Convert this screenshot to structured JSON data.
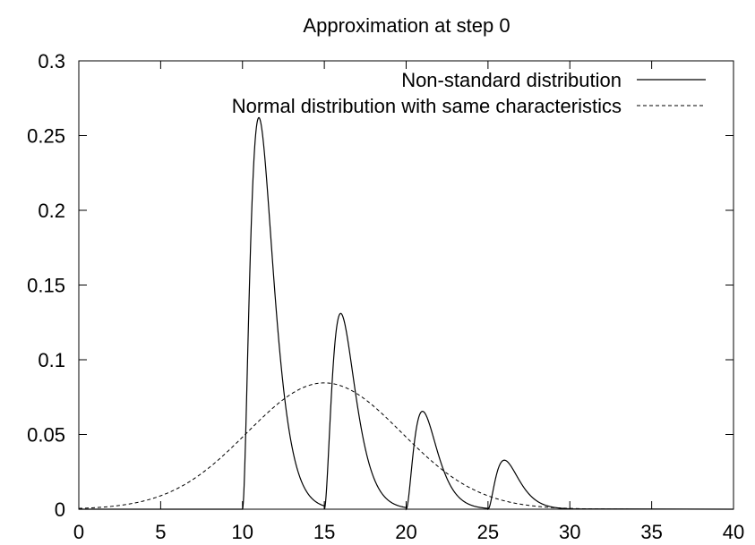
{
  "chart_data": {
    "type": "line",
    "title": "Approximation at step 0",
    "xlabel": "",
    "ylabel": "",
    "xlim": [
      0,
      40
    ],
    "ylim": [
      0,
      0.3
    ],
    "x_ticks": [
      "0",
      "5",
      "10",
      "15",
      "20",
      "25",
      "30",
      "35",
      "40"
    ],
    "y_ticks": [
      "0",
      "0.05",
      "0.1",
      "0.15",
      "0.2",
      "0.25",
      "0.3"
    ],
    "grid": false,
    "legend_position": "top-right",
    "series": [
      {
        "name": "Non-standard distribution",
        "style": "solid",
        "color": "#000000",
        "peaks": [
          {
            "start": 10,
            "end": 15,
            "peak_x": 11,
            "peak_y": 0.262
          },
          {
            "start": 15,
            "end": 20,
            "peak_x": 16,
            "peak_y": 0.131
          },
          {
            "start": 20,
            "end": 25,
            "peak_x": 21,
            "peak_y": 0.0655
          },
          {
            "start": 25,
            "end": 30,
            "peak_x": 26,
            "peak_y": 0.0328
          }
        ]
      },
      {
        "name": "Normal distribution with same characteristics",
        "style": "dashed",
        "color": "#000000",
        "mean": 15,
        "peak_y": 0.0845
      }
    ]
  }
}
